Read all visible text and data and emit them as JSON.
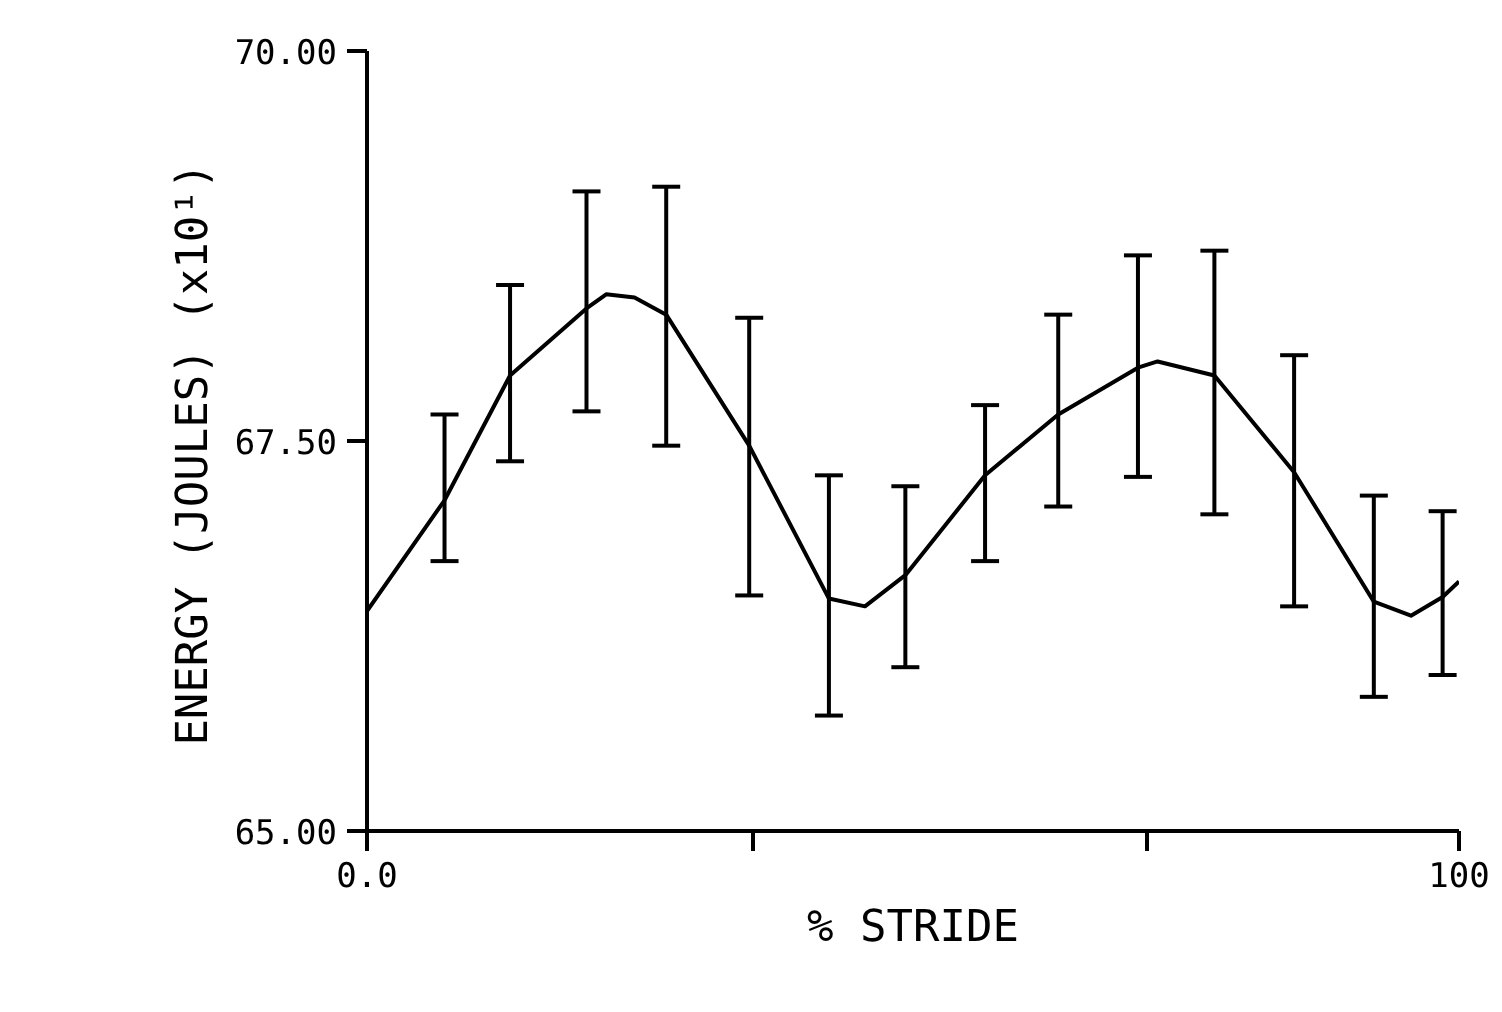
{
  "chart_data": {
    "type": "line",
    "xlabel": "% STRIDE",
    "ylabel": "ENERGY (JOULES)  (x10¹)",
    "xlim": [
      0,
      100
    ],
    "ylim": [
      65,
      70
    ],
    "xticks": [
      {
        "value": 0,
        "label": "0.0"
      },
      {
        "value": 35.4,
        "label": null
      },
      {
        "value": 71.4,
        "label": null
      },
      100
    ],
    "yticks": [
      {
        "value": 65,
        "label": "65.00"
      },
      {
        "value": 67.5,
        "label": "67.50"
      },
      {
        "value": 70,
        "label": "70.00"
      }
    ],
    "grid": false,
    "marker": "none",
    "line_style": "solid",
    "series": [
      {
        "color": "#000000",
        "x": [
          0,
          7.1,
          13.1,
          20.1,
          21.9,
          24.5,
          27.4,
          35.0,
          42.3,
          45.6,
          49.3,
          56.6,
          63.3,
          70.6,
          72.4,
          77.6,
          84.9,
          92.2,
          95.6,
          98.5,
          100
        ],
        "values": [
          66.41,
          67.12,
          67.92,
          68.35,
          68.44,
          68.42,
          68.31,
          67.47,
          66.49,
          66.44,
          66.64,
          67.28,
          67.67,
          67.97,
          68.01,
          67.92,
          67.3,
          66.47,
          66.38,
          66.5,
          66.6
        ],
        "errors": [
          null,
          [
            66.73,
            67.67
          ],
          [
            67.37,
            68.5
          ],
          [
            67.69,
            69.1
          ],
          null,
          null,
          [
            67.47,
            69.13
          ],
          [
            66.51,
            68.29
          ],
          [
            65.74,
            67.28
          ],
          null,
          [
            66.05,
            67.21
          ],
          [
            66.73,
            67.73
          ],
          [
            67.08,
            68.31
          ],
          [
            67.27,
            68.69
          ],
          null,
          [
            67.03,
            68.72
          ],
          [
            66.44,
            68.05
          ],
          [
            65.86,
            67.15
          ],
          null,
          [
            66.0,
            67.05
          ],
          null
        ]
      }
    ]
  }
}
